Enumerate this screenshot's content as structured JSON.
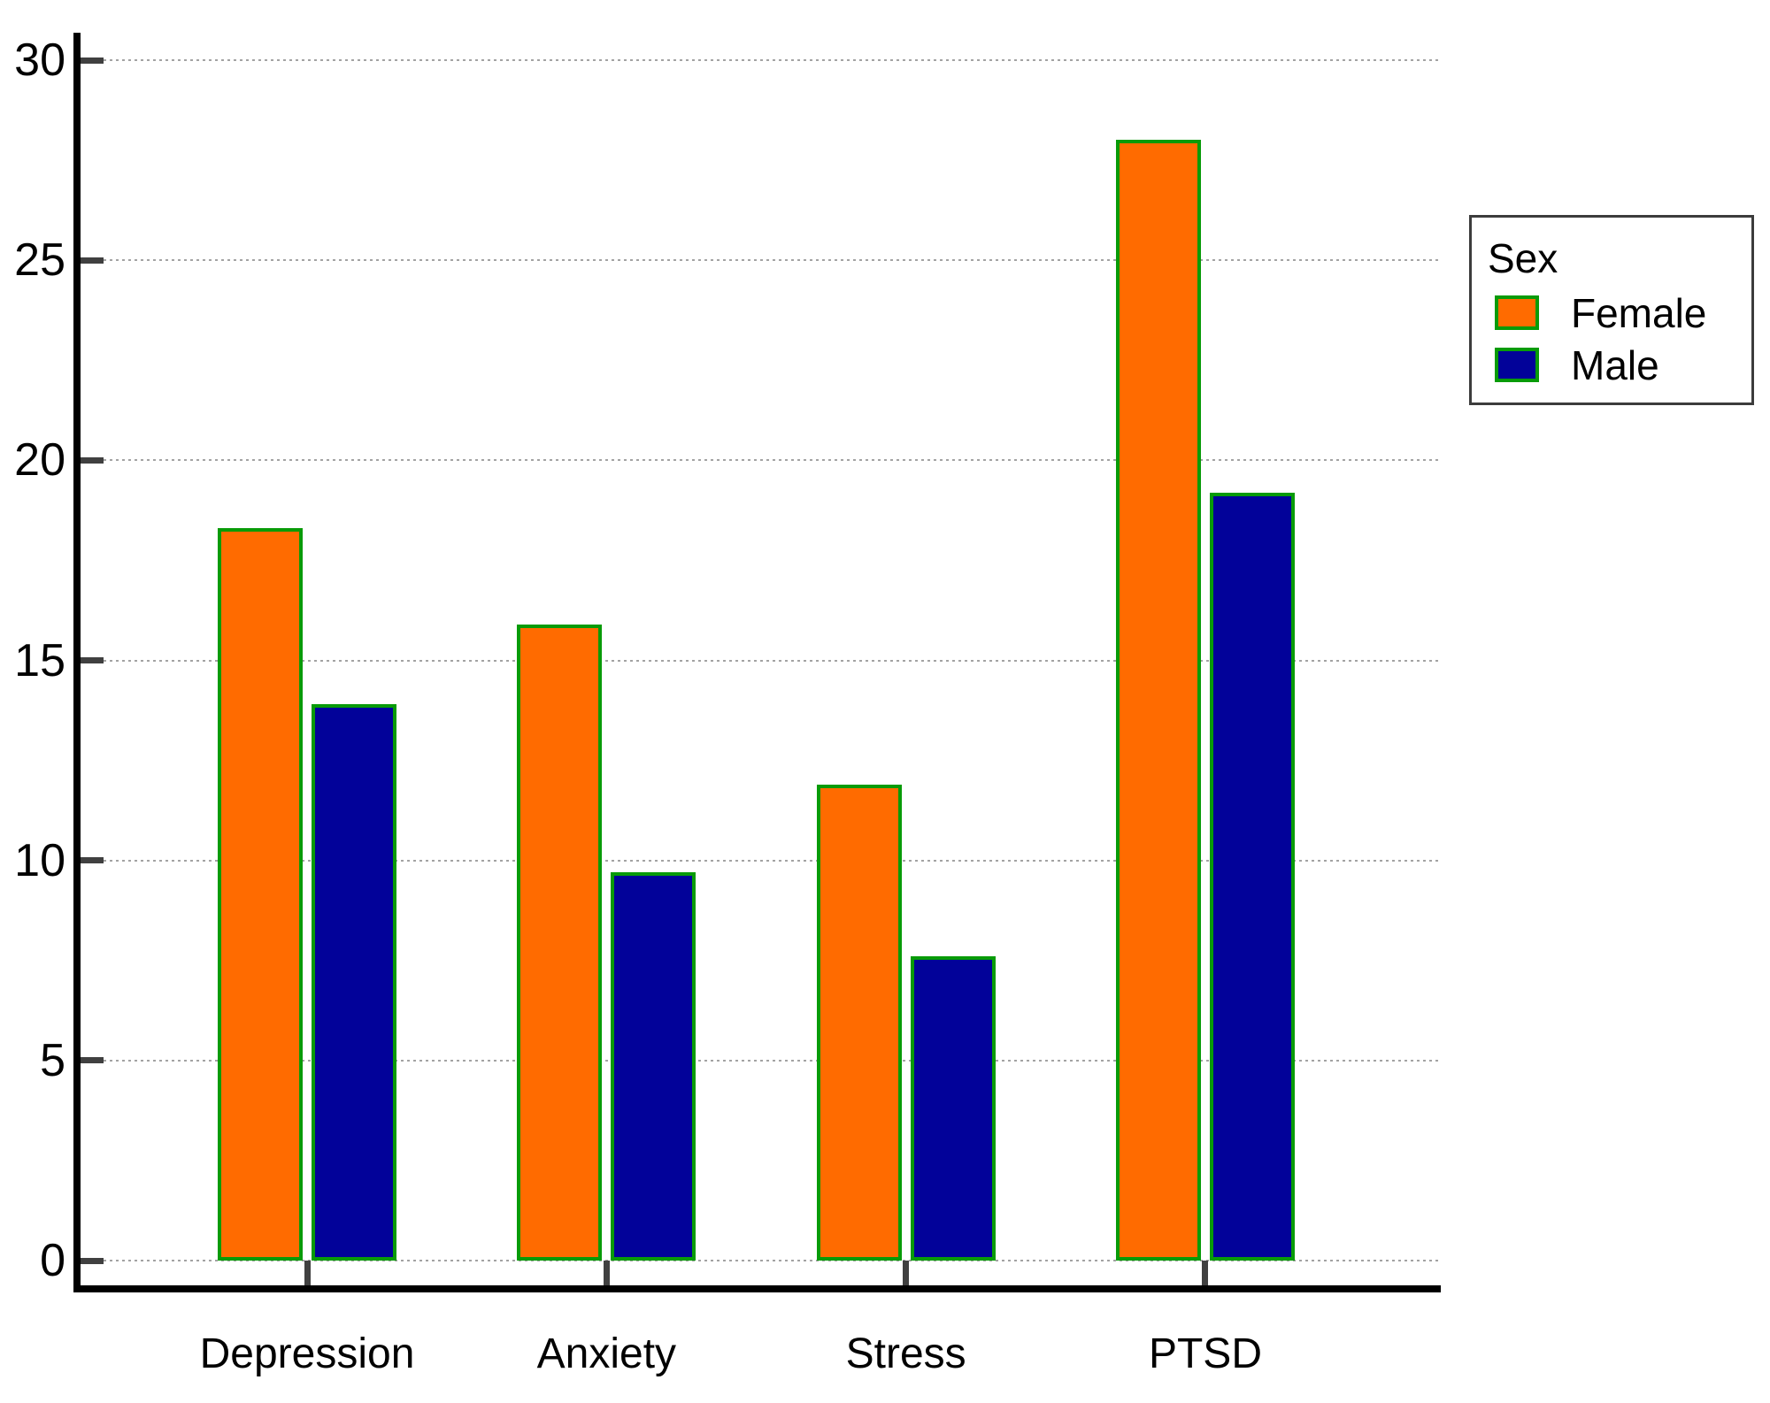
{
  "chart_data": {
    "type": "bar",
    "title": "",
    "xlabel": "",
    "ylabel": "",
    "categories": [
      "Depression",
      "Anxiety",
      "Stress",
      "PTSD"
    ],
    "series": [
      {
        "name": "Female",
        "color": "#FF6B00",
        "values": [
          18.3,
          15.9,
          11.9,
          28.0
        ]
      },
      {
        "name": "Male",
        "color": "#020299",
        "values": [
          13.9,
          9.7,
          7.6,
          19.2
        ]
      }
    ],
    "bar_outline_color": "#089B08",
    "ylim": [
      0,
      30
    ],
    "yticks": [
      0,
      5,
      10,
      15,
      20,
      25,
      30
    ],
    "ytick_labels": [
      "0",
      "5",
      "10",
      "15",
      "20",
      "25",
      "30"
    ],
    "grid": "horizontal-dotted",
    "gridline_color": "#a3a3a3",
    "axis_color": "#000000",
    "tick_color": "#404040",
    "legend": {
      "title": "Sex",
      "position": "top-right-outside",
      "entries": [
        "Female",
        "Male"
      ],
      "border_color": "#3c3c3c"
    }
  }
}
